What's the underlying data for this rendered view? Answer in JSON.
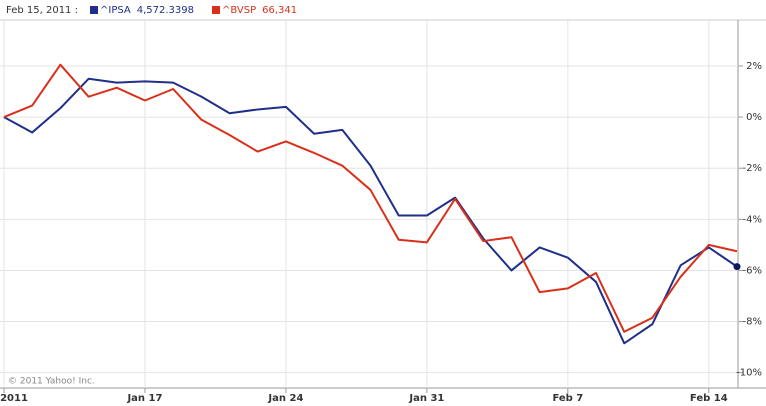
{
  "chart_data": {
    "type": "line",
    "header": "Feb 15, 2011 :",
    "copyright": "© 2011 Yahoo! Inc.",
    "x": [
      0,
      1,
      2,
      3,
      4,
      5,
      6,
      7,
      8,
      9,
      10,
      11,
      12,
      13,
      14,
      15,
      16,
      17,
      18,
      19,
      20,
      21,
      22,
      23,
      24,
      25,
      26
    ],
    "xlim": [
      0,
      26
    ],
    "xticks": [
      {
        "value": 0,
        "label": "2011"
      },
      {
        "value": 5,
        "label": "Jan 17"
      },
      {
        "value": 10,
        "label": "Jan 24"
      },
      {
        "value": 15,
        "label": "Jan 31"
      },
      {
        "value": 20,
        "label": "Feb 7"
      },
      {
        "value": 25,
        "label": "Feb 14"
      }
    ],
    "ylim": [
      -10.6,
      3.8
    ],
    "yticks": [
      {
        "value": 2,
        "label": "2%"
      },
      {
        "value": 0,
        "label": "0%"
      },
      {
        "value": -2,
        "label": "-2%"
      },
      {
        "value": -4,
        "label": "-4%"
      },
      {
        "value": -6,
        "label": "-6%"
      },
      {
        "value": -8,
        "label": "-8%"
      },
      {
        "value": -10,
        "label": "-10%"
      }
    ],
    "grid": true,
    "series": [
      {
        "name": "^IPSA",
        "last_label": "4,572.3398",
        "color": "#1f2f8a",
        "values": [
          0,
          -0.6,
          0.35,
          1.5,
          1.35,
          1.4,
          1.35,
          0.8,
          0.15,
          0.3,
          0.4,
          -0.65,
          -0.5,
          -1.9,
          -3.85,
          -3.85,
          -3.15,
          -4.75,
          -6.0,
          -5.1,
          -5.5,
          -6.45,
          -8.85,
          -8.1,
          -5.8,
          -5.1,
          -5.85
        ]
      },
      {
        "name": "^BVSP",
        "last_label": "66,341",
        "color": "#d9301a",
        "values": [
          0,
          0.45,
          2.05,
          0.8,
          1.15,
          0.65,
          1.1,
          -0.1,
          -0.7,
          -1.35,
          -0.95,
          -1.4,
          -1.9,
          -2.85,
          -4.8,
          -4.9,
          -3.2,
          -4.85,
          -4.7,
          -6.85,
          -6.7,
          -6.1,
          -8.4,
          -7.85,
          -6.25,
          -5.0,
          -5.25
        ]
      }
    ]
  }
}
